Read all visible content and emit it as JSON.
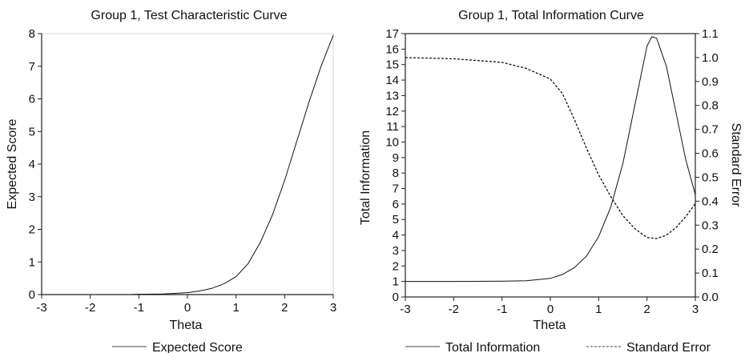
{
  "chart_data": [
    {
      "type": "line",
      "title": "Group 1, Test Characteristic Curve",
      "xlabel": "Theta",
      "ylabel": "Expected Score",
      "xlim": [
        -3,
        3
      ],
      "ylim": [
        0,
        8
      ],
      "xticks": [
        "-3",
        "-2",
        "-1",
        "0",
        "1",
        "2",
        "3"
      ],
      "yticks": [
        "0",
        "1",
        "2",
        "3",
        "4",
        "5",
        "6",
        "7",
        "8"
      ],
      "grid": false,
      "legend_position": "bottom",
      "series": [
        {
          "name": "Expected Score",
          "line_style": "solid",
          "color": "#111111",
          "x": [
            -1.15,
            -1.0,
            -0.5,
            0.0,
            0.25,
            0.5,
            0.75,
            1.0,
            1.25,
            1.5,
            1.75,
            2.0,
            2.25,
            2.5,
            2.75,
            3.0
          ],
          "y": [
            0.0,
            0.01,
            0.02,
            0.06,
            0.11,
            0.19,
            0.33,
            0.55,
            0.95,
            1.6,
            2.45,
            3.5,
            4.7,
            5.9,
            7.0,
            7.95
          ]
        }
      ]
    },
    {
      "type": "line",
      "title": "Group 1, Total Information Curve",
      "xlabel": "Theta",
      "ylabel": "Total Information",
      "y2label": "Standard Error",
      "xlim": [
        -3,
        3
      ],
      "ylim": [
        0,
        17
      ],
      "y2lim": [
        0,
        1.1
      ],
      "xticks": [
        "-3",
        "-2",
        "-1",
        "0",
        "1",
        "2",
        "3"
      ],
      "yticks": [
        "0",
        "1",
        "2",
        "3",
        "4",
        "5",
        "6",
        "7",
        "8",
        "9",
        "10",
        "11",
        "12",
        "13",
        "14",
        "15",
        "16",
        "17"
      ],
      "y2ticks": [
        "0.0",
        "0.1",
        "0.2",
        "0.3",
        "0.4",
        "0.5",
        "0.6",
        "0.7",
        "0.8",
        "0.9",
        "1.0",
        "1.1"
      ],
      "grid": false,
      "legend_position": "bottom",
      "series": [
        {
          "name": "Total Information",
          "axis": "left",
          "line_style": "solid",
          "color": "#111111",
          "x": [
            -3.0,
            -2.0,
            -1.0,
            -0.5,
            0.0,
            0.25,
            0.5,
            0.75,
            1.0,
            1.25,
            1.5,
            1.75,
            2.0,
            2.1,
            2.2,
            2.4,
            2.6,
            2.8,
            3.0
          ],
          "y": [
            1.0,
            1.0,
            1.02,
            1.05,
            1.2,
            1.45,
            1.9,
            2.65,
            3.9,
            5.8,
            8.6,
            12.4,
            16.2,
            16.8,
            16.7,
            14.9,
            11.9,
            8.9,
            6.6
          ]
        },
        {
          "name": "Standard Error",
          "axis": "right",
          "line_style": "dashed",
          "color": "#111111",
          "x": [
            -3.0,
            -2.0,
            -1.0,
            -0.5,
            0.0,
            0.25,
            0.5,
            0.75,
            1.0,
            1.25,
            1.5,
            1.75,
            2.0,
            2.2,
            2.4,
            2.6,
            2.8,
            3.0
          ],
          "y": [
            1.0,
            0.995,
            0.98,
            0.955,
            0.91,
            0.85,
            0.74,
            0.62,
            0.51,
            0.42,
            0.34,
            0.285,
            0.248,
            0.244,
            0.258,
            0.29,
            0.335,
            0.39
          ]
        }
      ]
    }
  ]
}
